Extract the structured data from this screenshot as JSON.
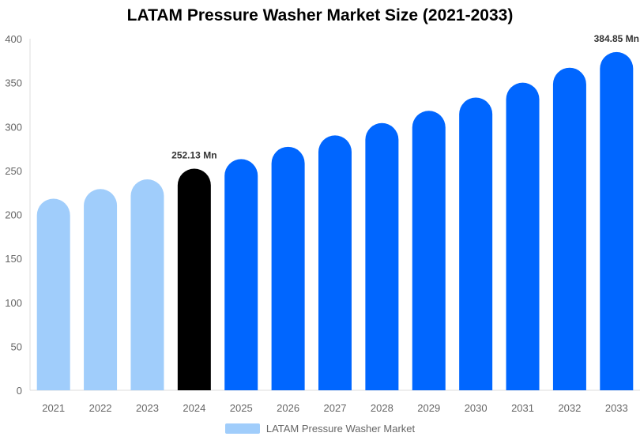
{
  "chart_data": {
    "type": "bar",
    "title": "LATAM Pressure Washer Market Size (2021-2033)",
    "categories": [
      "2021",
      "2022",
      "2023",
      "2024",
      "2025",
      "2026",
      "2027",
      "2028",
      "2029",
      "2030",
      "2031",
      "2032",
      "2033"
    ],
    "series": [
      {
        "name": "LATAM Pressure Washer Market",
        "values": [
          218,
          229,
          240,
          252.13,
          263,
          277,
          290,
          304,
          318,
          333,
          350,
          367,
          384.85
        ]
      }
    ],
    "data_labels": {
      "2024": "252.13 Mn",
      "2033": "384.85 Mn"
    },
    "ylim": [
      0,
      400
    ],
    "yticks": [
      0,
      50,
      100,
      150,
      200,
      250,
      300,
      350,
      400
    ],
    "grid": false,
    "legend": "bottom",
    "colors": {
      "historical": "#a0cdfb",
      "base_year": "#000000",
      "forecast": "#0066ff"
    }
  }
}
